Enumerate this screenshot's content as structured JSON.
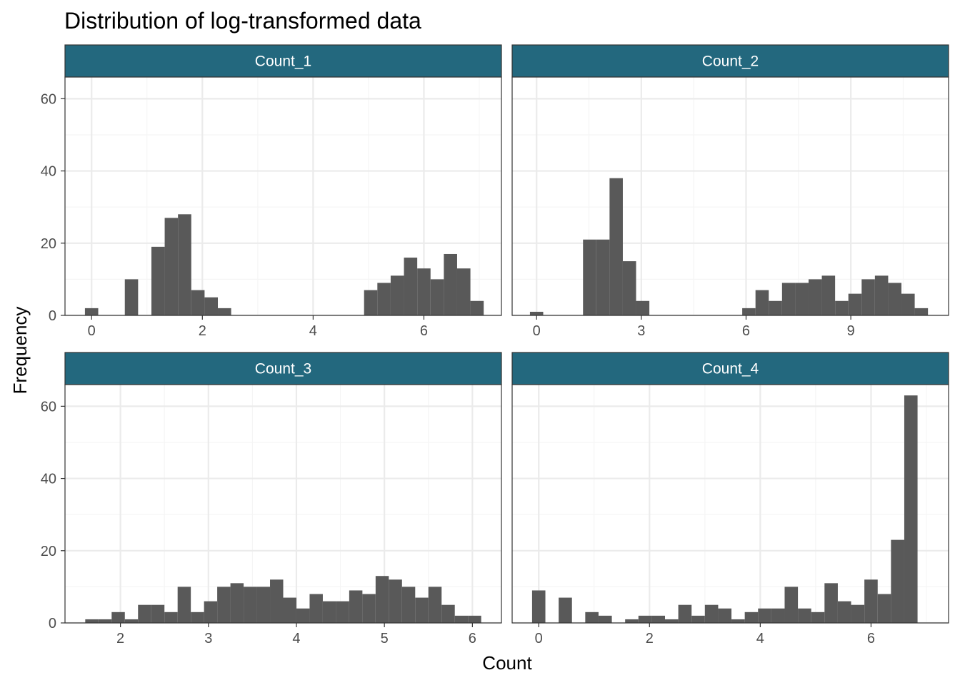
{
  "chart_data": {
    "type": "bar",
    "title": "Distribution of log-transformed data",
    "xlabel": "Count",
    "ylabel": "Frequency",
    "ylim": [
      0,
      66
    ],
    "yticks": [
      0,
      20,
      40,
      60
    ],
    "grid": true,
    "colors": {
      "strip": "#23687e",
      "bar": "#595959",
      "grid_major": "#ebebeb",
      "grid_minor": "#f5f5f5",
      "panel_border": "#333333",
      "tick_text": "#4d4d4d"
    },
    "panels": [
      {
        "name": "Count_1",
        "xlim": [
          -0.48,
          7.4
        ],
        "xticks": [
          0,
          2,
          4,
          6
        ],
        "xminor": [
          1,
          3,
          5,
          7
        ],
        "bin_width": 0.24,
        "bins_start": -0.12,
        "counts": [
          2,
          0,
          0,
          10,
          0,
          19,
          27,
          28,
          7,
          5,
          2,
          0,
          0,
          0,
          0,
          0,
          0,
          0,
          0,
          0,
          0,
          7,
          9,
          11,
          16,
          13,
          10,
          17,
          13,
          4
        ]
      },
      {
        "name": "Count_2",
        "xlim": [
          -0.7,
          11.8
        ],
        "xticks": [
          0,
          3,
          6,
          9
        ],
        "xminor": [
          1.5,
          4.5,
          7.5,
          10.5
        ],
        "bin_width": 0.38,
        "bins_start": -0.19,
        "counts": [
          1,
          0,
          0,
          0,
          21,
          21,
          38,
          15,
          4,
          0,
          0,
          0,
          0,
          0,
          0,
          0,
          2,
          7,
          4,
          9,
          9,
          10,
          11,
          4,
          6,
          10,
          11,
          9,
          6,
          2
        ]
      },
      {
        "name": "Count_3",
        "xlim": [
          1.37,
          6.33
        ],
        "xticks": [
          2,
          3,
          4,
          5,
          6
        ],
        "xminor": [
          2.5,
          3.5,
          4.5,
          5.5
        ],
        "bin_width": 0.15,
        "bins_start": 1.6,
        "counts": [
          1,
          1,
          3,
          1,
          5,
          5,
          3,
          10,
          3,
          6,
          10,
          11,
          10,
          10,
          12,
          7,
          4,
          8,
          6,
          6,
          9,
          8,
          13,
          12,
          10,
          7,
          10,
          5,
          2,
          2
        ]
      },
      {
        "name": "Count_4",
        "xlim": [
          -0.48,
          7.4
        ],
        "xticks": [
          0,
          2,
          4,
          6
        ],
        "xminor": [
          1,
          3,
          5,
          7
        ],
        "bin_width": 0.24,
        "bins_start": -0.12,
        "counts": [
          9,
          0,
          7,
          0,
          3,
          2,
          0,
          1,
          2,
          2,
          1,
          5,
          2,
          5,
          4,
          1,
          3,
          4,
          4,
          10,
          4,
          3,
          11,
          6,
          5,
          12,
          8,
          23,
          63
        ]
      }
    ]
  }
}
